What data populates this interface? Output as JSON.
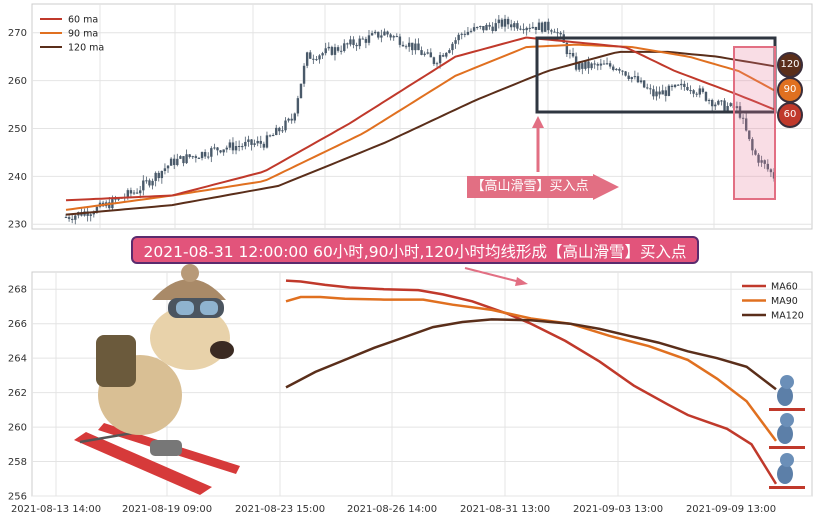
{
  "chart_data": [
    {
      "type": "candlestick",
      "ylim": [
        229,
        276
      ],
      "yticks": [
        230,
        240,
        250,
        260,
        270
      ],
      "grid": true,
      "legend_position": "top-left",
      "series": [
        {
          "name": "60 ma",
          "color": "#c0392b"
        },
        {
          "name": "90 ma",
          "color": "#e07020"
        },
        {
          "name": "120 ma",
          "color": "#5a2e1a"
        }
      ],
      "price_path": [
        [
          0,
          231.5
        ],
        [
          0.05,
          233.5
        ],
        [
          0.1,
          237
        ],
        [
          0.15,
          243
        ],
        [
          0.22,
          246
        ],
        [
          0.28,
          247
        ],
        [
          0.32,
          252
        ],
        [
          0.34,
          265
        ],
        [
          0.37,
          266
        ],
        [
          0.45,
          270
        ],
        [
          0.48,
          268
        ],
        [
          0.52,
          264
        ],
        [
          0.56,
          270
        ],
        [
          0.62,
          272
        ],
        [
          0.69,
          271
        ],
        [
          0.72,
          263
        ],
        [
          0.78,
          263
        ],
        [
          0.83,
          257
        ],
        [
          0.88,
          259
        ],
        [
          0.92,
          255
        ],
        [
          0.95,
          254
        ],
        [
          0.97,
          245
        ],
        [
          1.0,
          240
        ]
      ],
      "ma60_path": [
        [
          0,
          235
        ],
        [
          0.15,
          236
        ],
        [
          0.28,
          241
        ],
        [
          0.4,
          251
        ],
        [
          0.55,
          265
        ],
        [
          0.65,
          269
        ],
        [
          0.72,
          268
        ],
        [
          0.79,
          267
        ],
        [
          0.86,
          262
        ],
        [
          0.95,
          257
        ],
        [
          1.0,
          254
        ]
      ],
      "ma90_path": [
        [
          0,
          233
        ],
        [
          0.15,
          236
        ],
        [
          0.28,
          239
        ],
        [
          0.42,
          249
        ],
        [
          0.55,
          261
        ],
        [
          0.65,
          267
        ],
        [
          0.72,
          267.5
        ],
        [
          0.8,
          267
        ],
        [
          0.88,
          265
        ],
        [
          0.95,
          262
        ],
        [
          1.0,
          258
        ]
      ],
      "ma120_path": [
        [
          0,
          232
        ],
        [
          0.15,
          234
        ],
        [
          0.3,
          238
        ],
        [
          0.45,
          247
        ],
        [
          0.58,
          256
        ],
        [
          0.68,
          262
        ],
        [
          0.78,
          266
        ],
        [
          0.85,
          266
        ],
        [
          0.92,
          265
        ],
        [
          1.0,
          263
        ]
      ],
      "annotation_label": "【高山滑雪】买入点",
      "badges": [
        "120",
        "90",
        "60"
      ]
    },
    {
      "type": "line",
      "ylim": [
        256,
        269
      ],
      "yticks": [
        256,
        258,
        260,
        262,
        264,
        266,
        268
      ],
      "xticks": [
        "2021-08-13 14:00",
        "2021-08-19 09:00",
        "2021-08-23 15:00",
        "2021-08-26 14:00",
        "2021-08-31 13:00",
        "2021-09-03 13:00",
        "2021-09-09 13:00"
      ],
      "grid": true,
      "legend_position": "top-right",
      "series": [
        {
          "name": "MA60",
          "color": "#c0392b",
          "points": [
            [
              0,
              268.5
            ],
            [
              0.03,
              268.45
            ],
            [
              0.08,
              268.25
            ],
            [
              0.13,
              268.1
            ],
            [
              0.2,
              268.0
            ],
            [
              0.27,
              267.95
            ],
            [
              0.32,
              267.7
            ],
            [
              0.38,
              267.3
            ],
            [
              0.45,
              266.6
            ],
            [
              0.5,
              266.0
            ],
            [
              0.57,
              265.0
            ],
            [
              0.64,
              263.8
            ],
            [
              0.71,
              262.4
            ],
            [
              0.78,
              261.3
            ],
            [
              0.82,
              260.7
            ],
            [
              0.86,
              260.3
            ],
            [
              0.9,
              259.9
            ],
            [
              0.95,
              259.0
            ],
            [
              1.0,
              256.7
            ]
          ]
        },
        {
          "name": "MA90",
          "color": "#e07020",
          "points": [
            [
              0,
              267.3
            ],
            [
              0.03,
              267.55
            ],
            [
              0.07,
              267.55
            ],
            [
              0.12,
              267.45
            ],
            [
              0.2,
              267.4
            ],
            [
              0.28,
              267.4
            ],
            [
              0.34,
              267.1
            ],
            [
              0.42,
              266.8
            ],
            [
              0.5,
              266.3
            ],
            [
              0.58,
              266.0
            ],
            [
              0.66,
              265.3
            ],
            [
              0.74,
              264.7
            ],
            [
              0.82,
              263.9
            ],
            [
              0.88,
              262.8
            ],
            [
              0.94,
              261.5
            ],
            [
              1.0,
              259.2
            ]
          ]
        },
        {
          "name": "MA120",
          "color": "#5a2e1a",
          "points": [
            [
              0,
              262.3
            ],
            [
              0.06,
              263.2
            ],
            [
              0.12,
              263.9
            ],
            [
              0.18,
              264.6
            ],
            [
              0.24,
              265.2
            ],
            [
              0.3,
              265.8
            ],
            [
              0.36,
              266.1
            ],
            [
              0.42,
              266.25
            ],
            [
              0.5,
              266.2
            ],
            [
              0.58,
              266.0
            ],
            [
              0.64,
              265.7
            ],
            [
              0.7,
              265.3
            ],
            [
              0.76,
              264.9
            ],
            [
              0.82,
              264.4
            ],
            [
              0.88,
              264.0
            ],
            [
              0.94,
              263.5
            ],
            [
              1.0,
              262.2
            ]
          ]
        }
      ]
    }
  ],
  "banner_text": "2021-08-31 12:00:00 60小时,90小时,120小时均线形成【高山滑雪】买入点"
}
